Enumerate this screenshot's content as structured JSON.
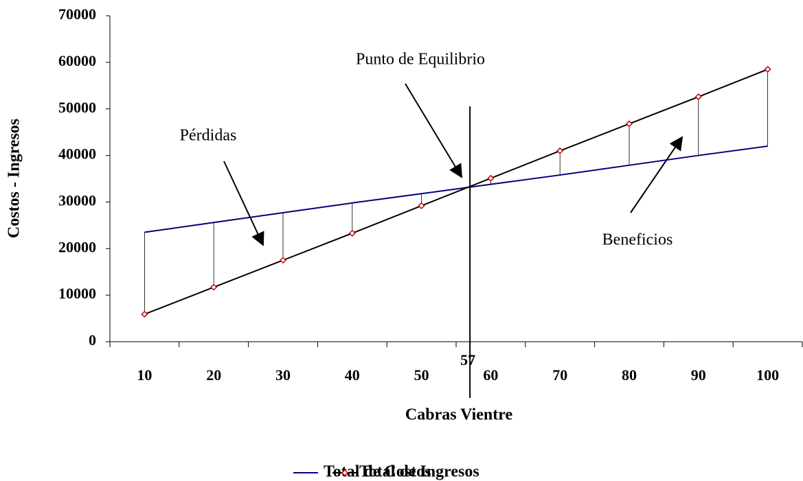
{
  "chart_data": {
    "type": "line",
    "x_label": "Cabras Vientre",
    "y_label": "Costos - Ingresos",
    "categories": [
      "10",
      "20",
      "30",
      "40",
      "50",
      "60",
      "70",
      "80",
      "90",
      "100"
    ],
    "series": [
      {
        "name": "Total de Costos",
        "color": "#000080",
        "values": [
          23500,
          25600,
          27700,
          29800,
          31800,
          33800,
          35800,
          37900,
          40000,
          42000
        ]
      },
      {
        "name": "Total de Ingresos",
        "color": "#000000",
        "marker_color": "#cc0000",
        "values": [
          5900,
          11700,
          17500,
          23300,
          29200,
          35100,
          41000,
          46800,
          52600,
          58500
        ]
      }
    ],
    "ylim": [
      0,
      70000
    ],
    "yticks": [
      0,
      10000,
      20000,
      30000,
      40000,
      50000,
      60000,
      70000
    ],
    "breakeven_x": 57,
    "annotations": [
      "Punto de Equilibrio",
      "Pérdidas",
      "Beneficios"
    ],
    "legend": "bottom"
  }
}
